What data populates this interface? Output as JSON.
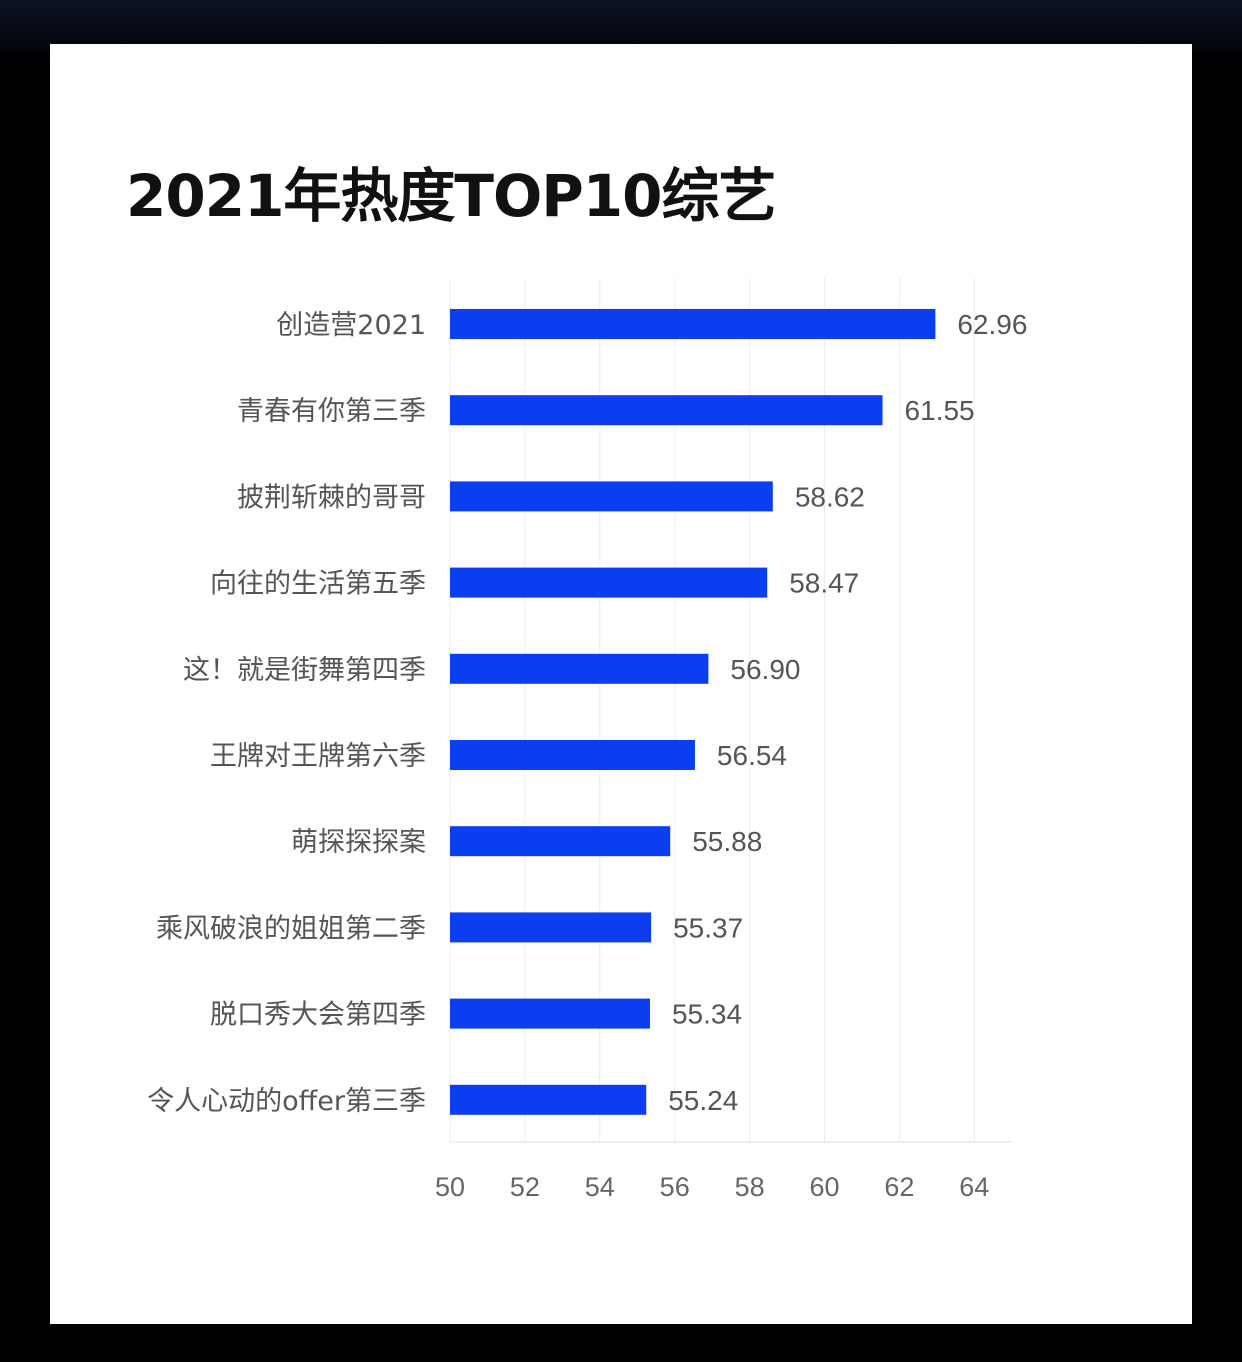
{
  "chart_data": {
    "type": "bar",
    "orientation": "horizontal",
    "title": "2021年热度TOP10综艺",
    "categories": [
      "创造营2021",
      "青春有你第三季",
      "披荆斩棘的哥哥",
      "向往的生活第五季",
      "这！就是街舞第四季",
      "王牌对王牌第六季",
      "萌探探探案",
      "乘风破浪的姐姐第二季",
      "脱口秀大会第四季",
      "令人心动的offer第三季"
    ],
    "values": [
      62.96,
      61.55,
      58.62,
      58.47,
      56.9,
      56.54,
      55.88,
      55.37,
      55.34,
      55.24
    ],
    "value_labels": [
      "62.96",
      "61.55",
      "58.62",
      "58.47",
      "56.90",
      "56.54",
      "55.88",
      "55.37",
      "55.34",
      "55.24"
    ],
    "xlim": [
      50,
      65
    ],
    "xticks": [
      50,
      52,
      54,
      56,
      58,
      60,
      62,
      64
    ],
    "bar_color": "#0a3ef0",
    "grid": true
  }
}
